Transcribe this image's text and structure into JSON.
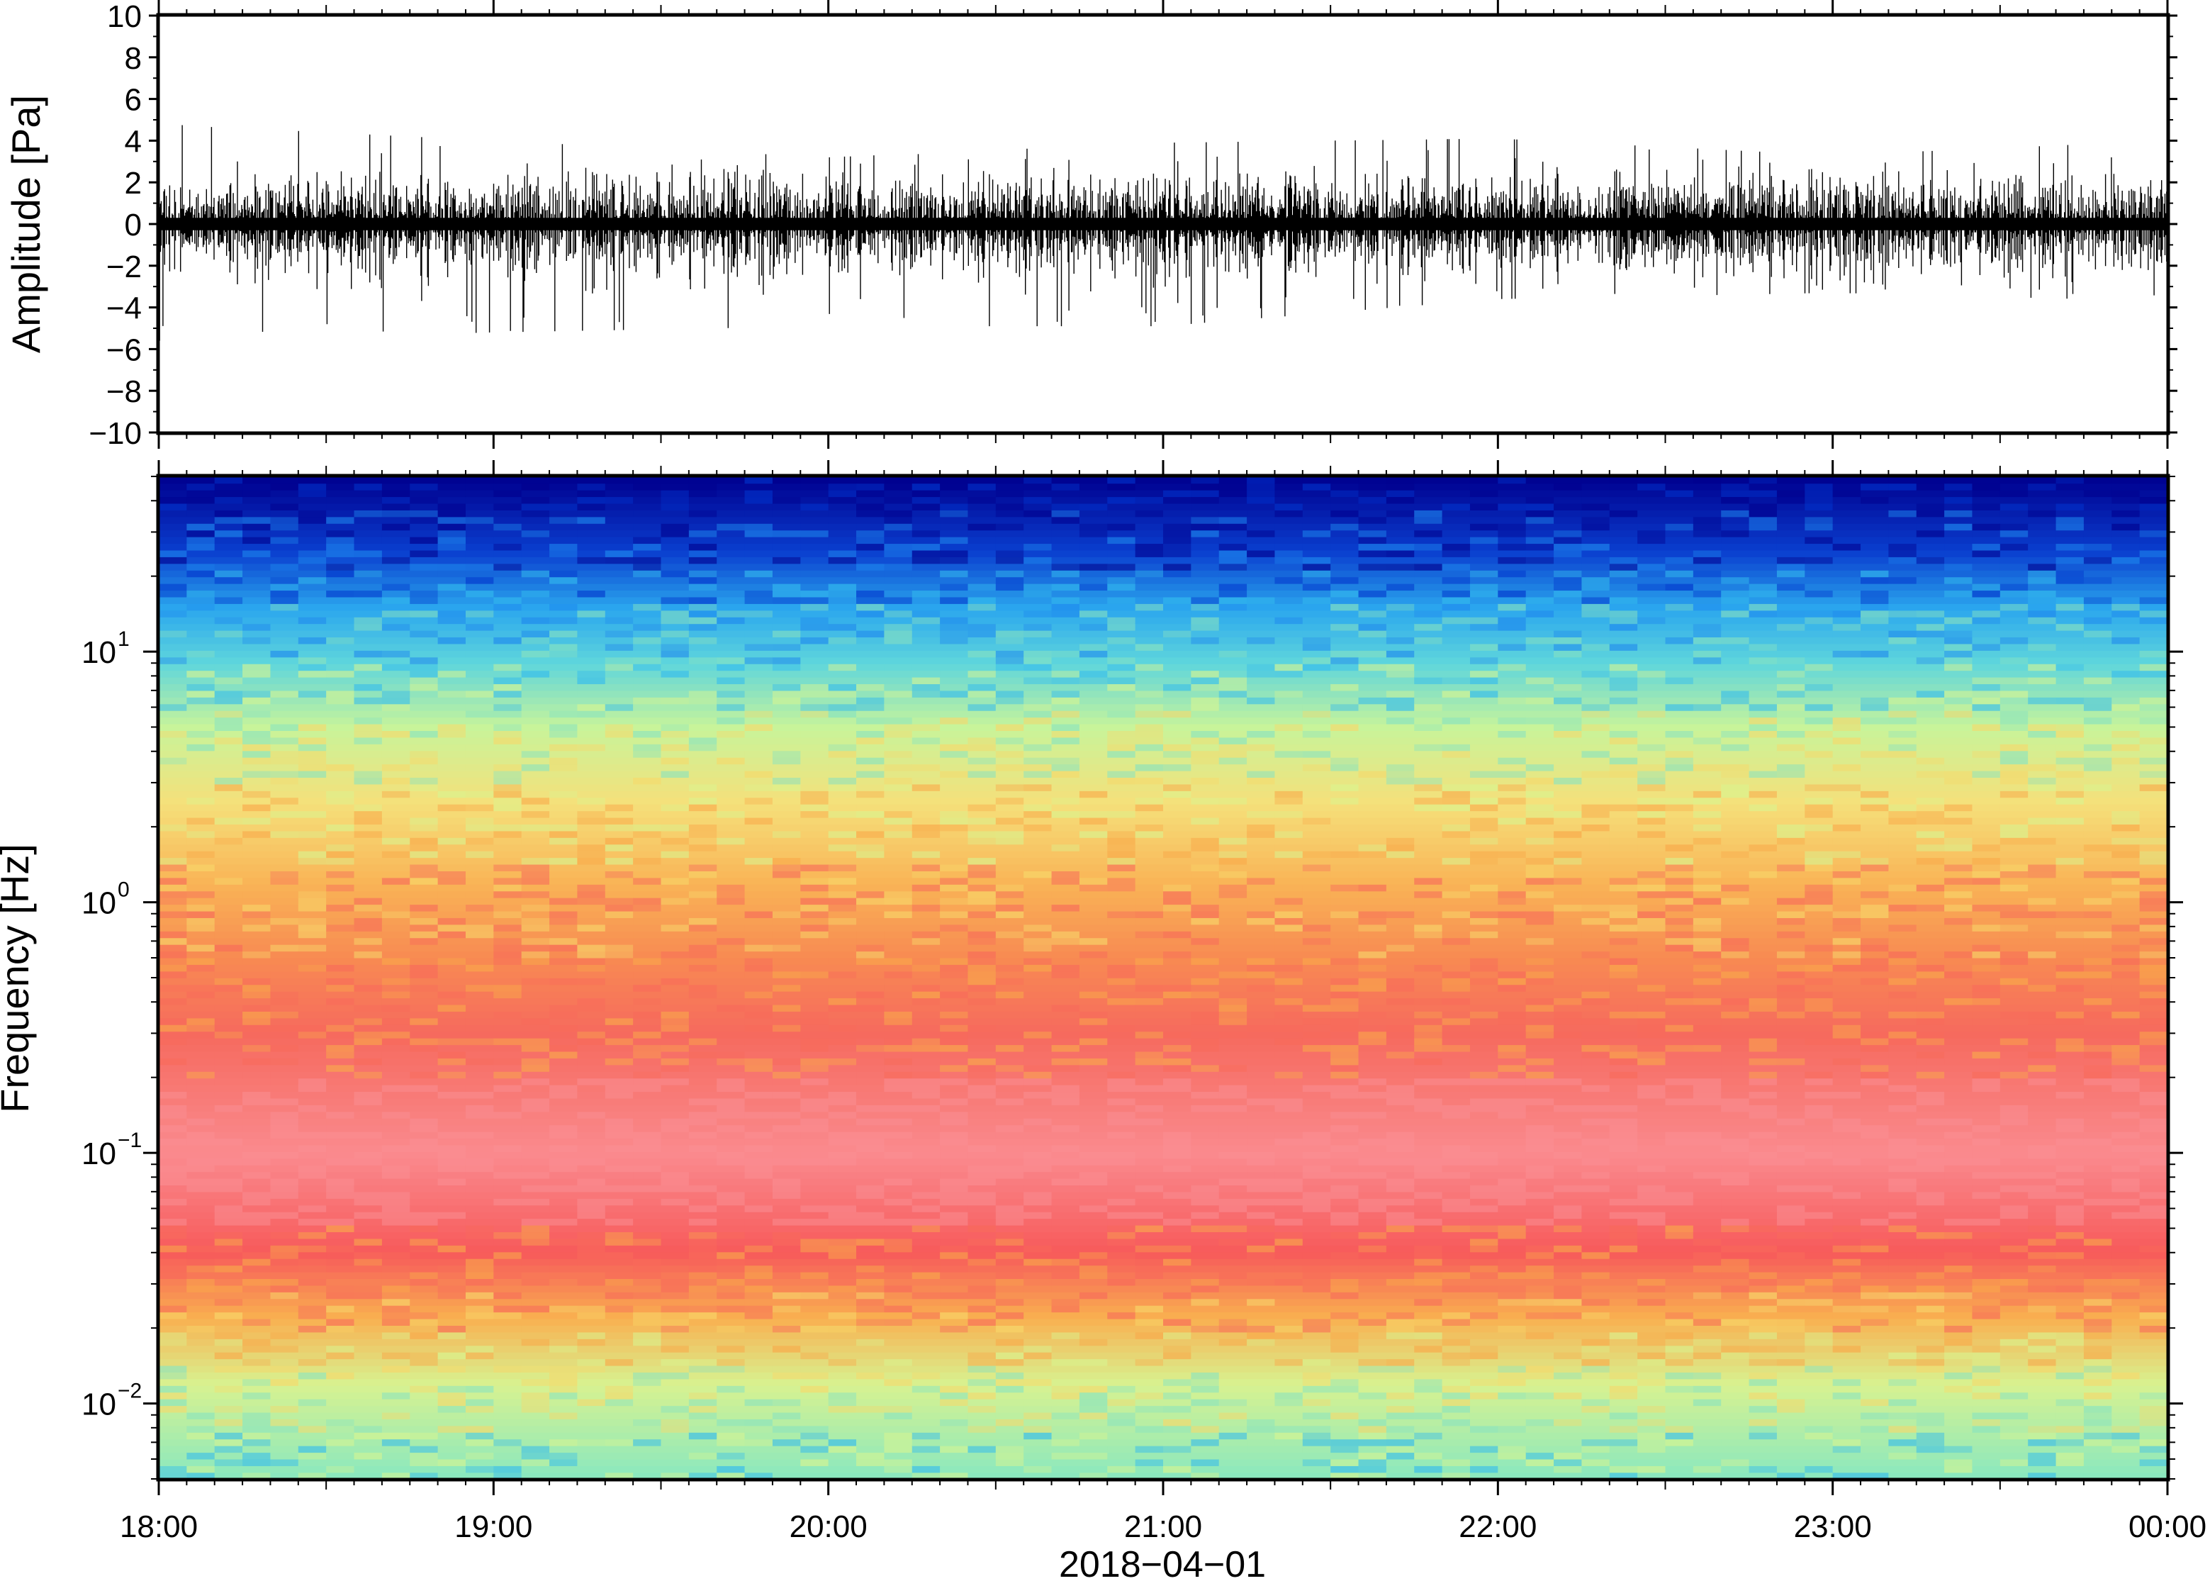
{
  "chart_data": [
    {
      "type": "line",
      "panel": "waveform",
      "ylabel": "Amplitude [Pa]",
      "xlabel": "",
      "ylim": [
        -10,
        10
      ],
      "yticks": [
        10,
        8,
        6,
        4,
        2,
        0,
        -2,
        -4,
        -6,
        -8,
        -10
      ],
      "ytick_labels": [
        "10",
        "8",
        "6",
        "4",
        "2",
        "0",
        "−2",
        "−4",
        "−6",
        "−8",
        "−10"
      ],
      "xlim": [
        "18:00",
        "00:00"
      ],
      "series": [
        {
          "color": "#000000",
          "envelope_hourly": {
            "x": [
              "18:00",
              "19:00",
              "20:00",
              "21:00",
              "22:00",
              "23:00",
              "00:00"
            ],
            "max": [
              4.8,
              4.0,
              3.2,
              3.9,
              4.1,
              3.3,
              4.0
            ],
            "min": [
              -5.6,
              -5.2,
              -4.9,
              -4.9,
              -3.6,
              -3.3,
              -3.7
            ]
          }
        }
      ],
      "grid": false
    },
    {
      "type": "heatmap",
      "panel": "spectrogram",
      "ylabel": "Frequency [Hz]",
      "xlabel": "2018−04−01",
      "yscale": "log",
      "ylim": [
        0.005,
        50
      ],
      "yticks": [
        0.01,
        0.1,
        1,
        10
      ],
      "ytick_labels": [
        {
          "base": "10",
          "exp": "−2"
        },
        {
          "base": "10",
          "exp": "−1"
        },
        {
          "base": "10",
          "exp": "0"
        },
        {
          "base": "10",
          "exp": "1"
        }
      ],
      "x_tick_labels": [
        "18:00",
        "19:00",
        "20:00",
        "21:00",
        "22:00",
        "23:00",
        "00:00"
      ],
      "xlim": [
        "18:00",
        "00:00"
      ],
      "colormap": [
        "#00008f",
        "#0033cc",
        "#1e88ee",
        "#33bbee",
        "#88e3c0",
        "#d8f590",
        "#f7d86a",
        "#f9a94a",
        "#f86a5a",
        "#f96060",
        "#fa8f94"
      ],
      "color_profile_by_frequency": [
        {
          "freq": 50,
          "color": "#00008f"
        },
        {
          "freq": 25,
          "color": "#0a3fcf"
        },
        {
          "freq": 15,
          "color": "#2aa6ee"
        },
        {
          "freq": 9,
          "color": "#5fd6dc"
        },
        {
          "freq": 5,
          "color": "#c8f49a"
        },
        {
          "freq": 2.5,
          "color": "#f5e07a"
        },
        {
          "freq": 1.2,
          "color": "#f9b456"
        },
        {
          "freq": 0.6,
          "color": "#f88a52"
        },
        {
          "freq": 0.3,
          "color": "#f66a5e"
        },
        {
          "freq": 0.1,
          "color": "#fa8a8e"
        },
        {
          "freq": 0.04,
          "color": "#f75a5a"
        },
        {
          "freq": 0.022,
          "color": "#f9b050"
        },
        {
          "freq": 0.012,
          "color": "#d8f290"
        },
        {
          "freq": 0.005,
          "color": "#88e8c0"
        }
      ],
      "grid": false
    }
  ]
}
